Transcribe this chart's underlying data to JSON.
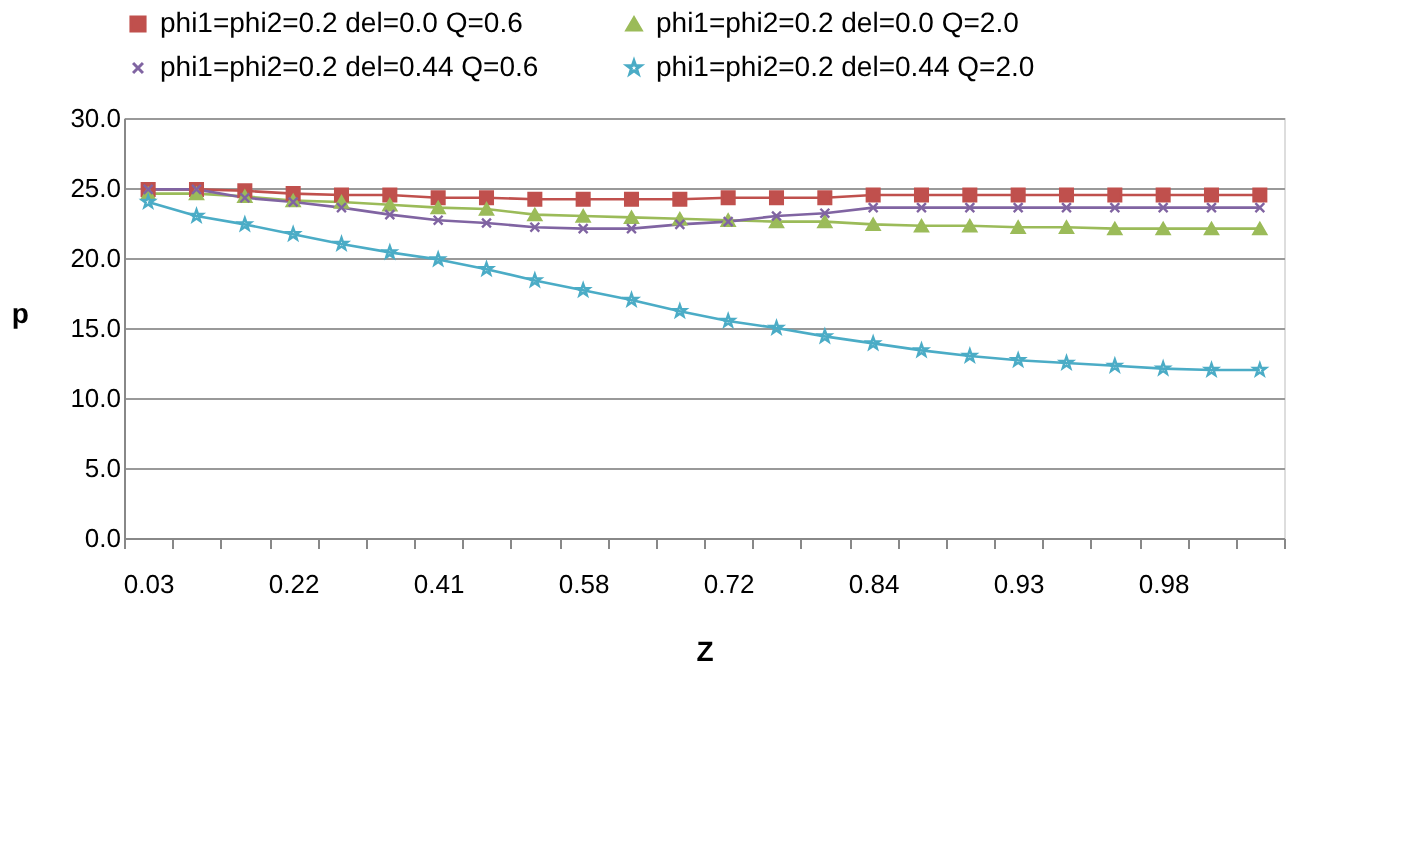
{
  "chart_data": {
    "type": "line",
    "xlabel": "Z",
    "ylabel": "p",
    "categories": [
      "0.03",
      null,
      null,
      "0.22",
      null,
      null,
      "0.41",
      null,
      null,
      "0.58",
      null,
      null,
      "0.72",
      null,
      null,
      "0.84",
      null,
      null,
      "0.93",
      null,
      null,
      "0.98",
      null,
      null
    ],
    "ylim": [
      0,
      30
    ],
    "yticks": [
      {
        "value": 0,
        "label": "0.0"
      },
      {
        "value": 5,
        "label": "5.0"
      },
      {
        "value": 10,
        "label": "10.0"
      },
      {
        "value": 15,
        "label": "15.0"
      },
      {
        "value": 20,
        "label": "20.0"
      },
      {
        "value": 25,
        "label": "25.0"
      },
      {
        "value": 30,
        "label": "30.0"
      }
    ],
    "grid": "y",
    "legend": "top",
    "line_style": "solid",
    "series": [
      {
        "name": "phi1=phi2=0.2 del=0.0 Q=0.6",
        "color": "#c0504d",
        "marker": "square",
        "values": [
          24.9,
          24.9,
          24.8,
          24.6,
          24.5,
          24.5,
          24.3,
          24.3,
          24.2,
          24.2,
          24.2,
          24.2,
          24.3,
          24.3,
          24.3,
          24.5,
          24.5,
          24.5,
          24.5,
          24.5,
          24.5,
          24.5,
          24.5,
          24.5
        ]
      },
      {
        "name": "phi1=phi2=0.2 del=0.0 Q=2.0",
        "color": "#9bbb59",
        "marker": "triangle",
        "values": [
          24.6,
          24.6,
          24.4,
          24.1,
          24.0,
          23.8,
          23.6,
          23.5,
          23.1,
          23.0,
          22.9,
          22.8,
          22.7,
          22.6,
          22.6,
          22.4,
          22.3,
          22.3,
          22.2,
          22.2,
          22.1,
          22.1,
          22.1,
          22.1
        ]
      },
      {
        "name": "phi1=phi2=0.2 del=0.44 Q=0.6",
        "color": "#8064a2",
        "marker": "cross",
        "values": [
          24.9,
          24.9,
          24.3,
          24.0,
          23.6,
          23.1,
          22.7,
          22.5,
          22.2,
          22.1,
          22.1,
          22.4,
          22.6,
          23.0,
          23.2,
          23.6,
          23.6,
          23.6,
          23.6,
          23.6,
          23.6,
          23.6,
          23.6,
          23.6
        ]
      },
      {
        "name": "phi1=phi2=0.2 del=0.44 Q=2.0",
        "color": "#4bacc6",
        "marker": "star",
        "values": [
          24.0,
          23.0,
          22.4,
          21.7,
          21.0,
          20.4,
          19.9,
          19.2,
          18.4,
          17.7,
          17.0,
          16.2,
          15.5,
          15.0,
          14.4,
          13.9,
          13.4,
          13.0,
          12.7,
          12.5,
          12.3,
          12.1,
          12.0,
          12.0
        ]
      }
    ]
  }
}
